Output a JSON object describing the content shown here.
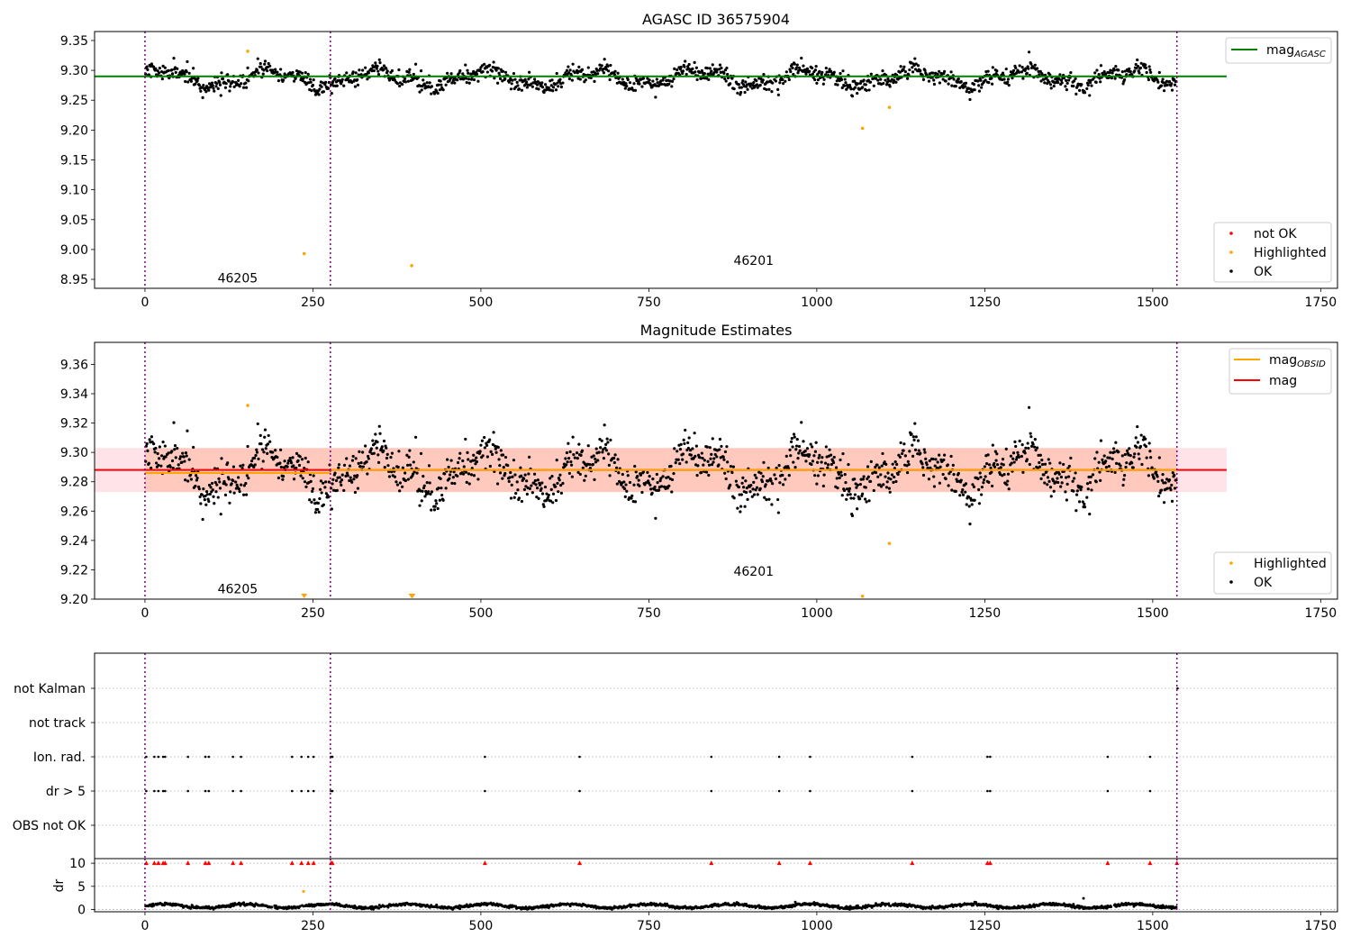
{
  "chart_data": [
    {
      "type": "scatter",
      "title": "AGASC ID 36575904",
      "xlim": [
        -75,
        1775
      ],
      "ylim": [
        8.935,
        9.365
      ],
      "xticks": [
        0,
        250,
        500,
        750,
        1000,
        1250,
        1500,
        1750
      ],
      "yticks": [
        8.95,
        9.0,
        9.05,
        9.1,
        9.15,
        9.2,
        9.25,
        9.3,
        9.35
      ],
      "ytick_format": 2,
      "obs_boundaries": [
        0,
        276,
        1536
      ],
      "obs_labels": [
        {
          "text": "46205",
          "x": 138,
          "y": 8.952
        },
        {
          "text": "46201",
          "x": 906,
          "y": 8.982
        }
      ],
      "series": [
        {
          "name": "mag_AGASC",
          "type": "hline",
          "y": 9.29,
          "x_range": [
            -75,
            1610
          ],
          "color": "#008000"
        }
      ],
      "ok_series": {
        "name": "OK",
        "color": "#000000",
        "x_range": [
          0,
          1536
        ],
        "mean": 9.287,
        "amplitude": 0.013,
        "scatter": 0.007
      },
      "highlighted_points": [
        {
          "x": 153,
          "y": 9.332
        },
        {
          "x": 237,
          "y": 8.993
        },
        {
          "x": 397,
          "y": 8.973
        },
        {
          "x": 1068,
          "y": 9.203
        },
        {
          "x": 1108,
          "y": 9.238
        }
      ],
      "legend_lines": [
        {
          "label_main": "mag",
          "label_sub": "AGASC",
          "color": "#008000"
        }
      ],
      "legend_markers": [
        {
          "label": "not OK",
          "color": "#ff0000"
        },
        {
          "label": "Highlighted",
          "color": "#ffa500"
        },
        {
          "label": "OK",
          "color": "#000000"
        }
      ]
    },
    {
      "type": "scatter",
      "title": "Magnitude Estimates",
      "xlim": [
        -75,
        1775
      ],
      "ylim": [
        9.2,
        9.375
      ],
      "xticks": [
        0,
        250,
        500,
        750,
        1000,
        1250,
        1500,
        1750
      ],
      "yticks": [
        9.2,
        9.22,
        9.24,
        9.26,
        9.28,
        9.3,
        9.32,
        9.34,
        9.36
      ],
      "ytick_format": 2,
      "obs_boundaries": [
        0,
        276,
        1536
      ],
      "obs_labels": [
        {
          "text": "46205",
          "x": 138,
          "y": 9.207
        },
        {
          "text": "46201",
          "x": 906,
          "y": 9.219
        }
      ],
      "bands": [
        {
          "x_range": [
            -75,
            1610
          ],
          "y_range": [
            9.273,
            9.303
          ],
          "color": "#ffc0cb",
          "opacity": 0.45
        },
        {
          "x_range": [
            0,
            276
          ],
          "y_range": [
            9.273,
            9.303
          ],
          "color": "#ffa07a",
          "opacity": 0.38
        },
        {
          "x_range": [
            276,
            1536
          ],
          "y_range": [
            9.273,
            9.303
          ],
          "color": "#ffa07a",
          "opacity": 0.38
        }
      ],
      "series": [
        {
          "name": "mag",
          "type": "hline",
          "y": 9.288,
          "x_range": [
            -75,
            1610
          ],
          "color": "#ff0000"
        },
        {
          "name": "mag_OBSID",
          "type": "segments",
          "color": "#ffa500",
          "segments": [
            {
              "x": [
                0,
                276
              ],
              "y": 9.286
            },
            {
              "x": [
                276,
                1536
              ],
              "y": 9.288
            }
          ]
        }
      ],
      "ok_series": {
        "name": "OK",
        "color": "#000000",
        "x_range": [
          0,
          1536
        ],
        "mean": 9.287,
        "amplitude": 0.013,
        "scatter": 0.007
      },
      "highlighted_points": [
        {
          "x": 153,
          "y": 9.332
        },
        {
          "x": 1108,
          "y": 9.238
        },
        {
          "x": 1068,
          "y": 9.202
        }
      ],
      "clipped_markers": [
        237,
        397,
        398
      ],
      "legend_lines": [
        {
          "label_main": "mag",
          "label_sub": "OBSID",
          "color": "#ffa500"
        },
        {
          "label_main": "mag",
          "label_sub": "",
          "color": "#ff0000"
        }
      ],
      "legend_markers": [
        {
          "label": "Highlighted",
          "color": "#ffa500"
        },
        {
          "label": "OK",
          "color": "#000000"
        }
      ]
    },
    {
      "type": "scatter",
      "title": "",
      "xlim": [
        -75,
        1775
      ],
      "xticks": [
        0,
        250,
        500,
        750,
        1000,
        1250,
        1500,
        1750
      ],
      "obs_boundaries": [
        0,
        276,
        1536
      ],
      "flag_categories": [
        "not Kalman",
        "not track",
        "Ion. rad.",
        "dr > 5",
        "OBS not OK"
      ],
      "flag_points": {
        "not Kalman": [
          1537
        ],
        "not track": [],
        "Ion. rad.": [
          2,
          14,
          20,
          27,
          30,
          64,
          90,
          95,
          131,
          143,
          219,
          233,
          243,
          251,
          277,
          279,
          506,
          647,
          843,
          944,
          990,
          1142,
          1254,
          1258,
          1433,
          1496
        ],
        "dr > 5": [
          2,
          14,
          20,
          27,
          30,
          64,
          90,
          95,
          131,
          143,
          219,
          233,
          243,
          251,
          277,
          279,
          506,
          647,
          843,
          944,
          990,
          1142,
          1254,
          1258,
          1433,
          1496
        ],
        "OBS not OK": []
      },
      "dr": {
        "ylabel": "dr",
        "ylim": [
          -0.5,
          11
        ],
        "yticks": [
          0,
          5,
          10
        ],
        "clipped_markers": [
          2,
          14,
          20,
          27,
          30,
          64,
          90,
          95,
          131,
          143,
          219,
          233,
          243,
          251,
          277,
          279,
          506,
          647,
          843,
          944,
          990,
          1142,
          1254,
          1258,
          1433,
          1496,
          1536
        ],
        "highlighted_points": [
          {
            "x": 236,
            "y": 3.9
          }
        ],
        "outliers": [
          {
            "x": 1397,
            "y": 2.4
          },
          {
            "x": 968,
            "y": 1.6
          }
        ]
      }
    }
  ]
}
